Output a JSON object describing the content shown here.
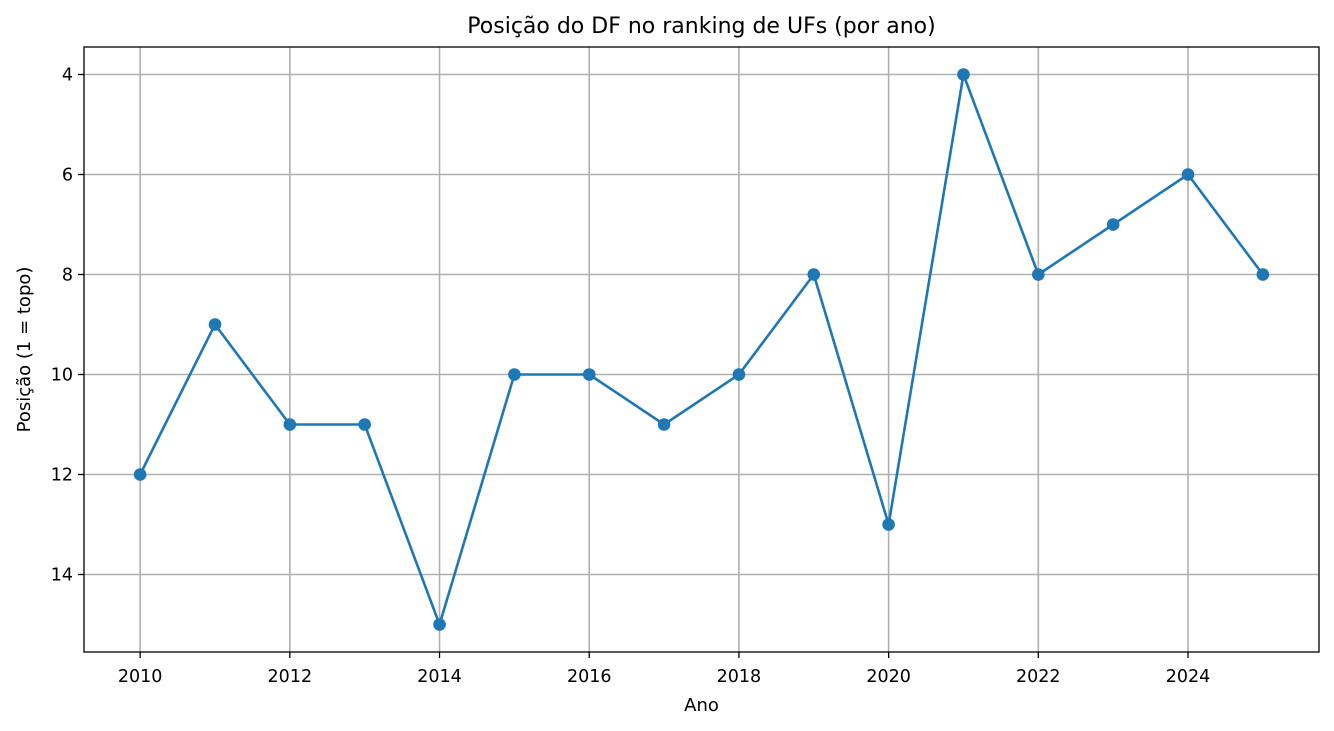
{
  "chart_data": {
    "type": "line",
    "title": "Posição do DF no ranking de UFs (por ano)",
    "xlabel": "Ano",
    "ylabel": "Posição (1 = topo)",
    "x": [
      2010,
      2011,
      2012,
      2013,
      2014,
      2015,
      2016,
      2017,
      2018,
      2019,
      2020,
      2021,
      2022,
      2023,
      2024,
      2025
    ],
    "series": [
      {
        "values": [
          12,
          9,
          11,
          11,
          15,
          10,
          10,
          11,
          10,
          8,
          13,
          4,
          8,
          7,
          6,
          8
        ],
        "color": "#1f77b4",
        "marker": "circle"
      }
    ],
    "xlim": [
      2009.25,
      2025.75
    ],
    "ylim": [
      15.55,
      3.45
    ],
    "y_inverted": true,
    "xticks": [
      2010,
      2012,
      2014,
      2016,
      2018,
      2020,
      2022,
      2024
    ],
    "yticks": [
      4,
      6,
      8,
      10,
      12,
      14
    ],
    "grid": true
  }
}
